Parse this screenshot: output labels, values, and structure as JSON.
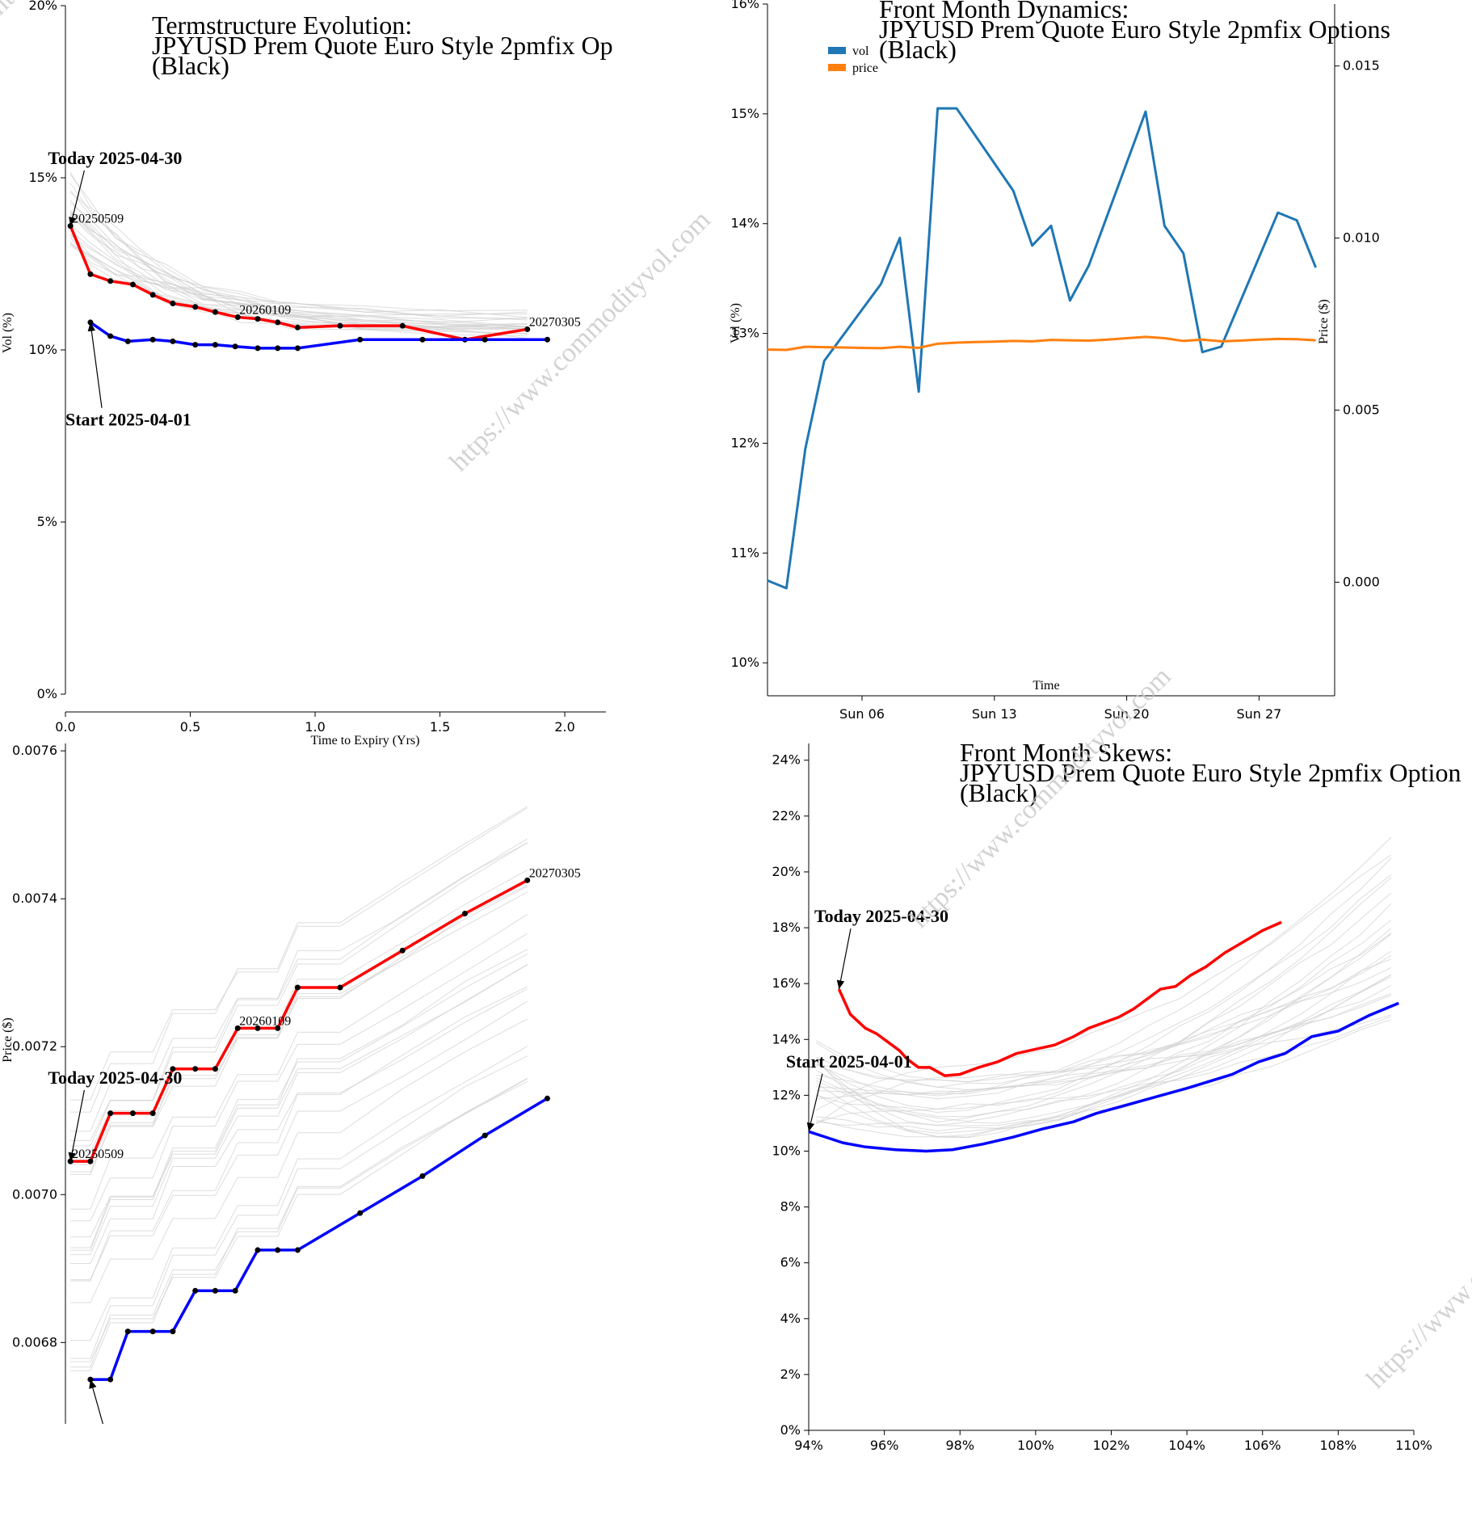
{
  "watermark": "https://www.commodityvol.com",
  "chart_data": [
    {
      "id": "termstructure",
      "type": "line",
      "title": [
        "Termstructure Evolution:",
        "JPYUSD Prem Quote Euro Style 2pmfix Op",
        "(Black)"
      ],
      "xlabel": "Time to Expiry (Yrs)",
      "ylabel": "Vol (%)",
      "xlim": [
        0,
        2.1
      ],
      "ylim": [
        0,
        20
      ],
      "xticks": [
        "0.0",
        "0.5",
        "1.0",
        "1.5",
        "2.0"
      ],
      "yticks": [
        "0%",
        "5%",
        "10%",
        "15%",
        "20%"
      ],
      "series": [
        {
          "color": "#ff0000",
          "x": [
            0.02,
            0.1,
            0.18,
            0.27,
            0.35,
            0.43,
            0.52,
            0.6,
            0.69,
            0.77,
            0.85,
            0.93,
            1.1,
            1.35,
            1.6,
            1.85
          ],
          "y": [
            13.6,
            12.2,
            12.0,
            11.9,
            11.6,
            11.35,
            11.25,
            11.1,
            10.95,
            10.9,
            10.8,
            10.65,
            10.7,
            10.7,
            10.3,
            10.6
          ]
        },
        {
          "color": "#0000ff",
          "x": [
            0.1,
            0.18,
            0.25,
            0.35,
            0.43,
            0.52,
            0.6,
            0.68,
            0.77,
            0.85,
            0.93,
            1.18,
            1.43,
            1.68,
            1.93
          ],
          "y": [
            10.8,
            10.4,
            10.25,
            10.3,
            10.25,
            10.15,
            10.15,
            10.1,
            10.05,
            10.05,
            10.05,
            10.3,
            10.3,
            10.3,
            10.3
          ]
        }
      ],
      "labels": [
        {
          "text": "20250509",
          "x": 0.02,
          "y": 13.6
        },
        {
          "text": "20260109",
          "x": 0.69,
          "y": 10.95
        },
        {
          "text": "20270305",
          "x": 1.85,
          "y": 10.6
        }
      ],
      "annotations": [
        {
          "text": "Today 2025-04-30",
          "x": -0.07,
          "y": 15.4,
          "tx": 0.02,
          "ty": 13.6
        },
        {
          "text": "Start 2025-04-01",
          "x": 0.0,
          "y": 7.8,
          "tx": 0.1,
          "ty": 10.8
        }
      ]
    },
    {
      "id": "dynamics",
      "type": "line",
      "title": [
        "Front Month Dynamics:",
        "JPYUSD Prem Quote Euro Style 2pmfix Options",
        "(Black)"
      ],
      "xlabel": "Time",
      "ylabel": "Vol (%)",
      "y2label": "Price ($)",
      "xlim": [
        0,
        30
      ],
      "ylim": [
        9.7,
        16
      ],
      "y2lim": [
        -0.0033,
        0.0168
      ],
      "xticks": [
        {
          "label": "Sun 06",
          "x": 5
        },
        {
          "label": "Sun 13",
          "x": 12
        },
        {
          "label": "Sun 20",
          "x": 19
        },
        {
          "label": "Sun 27",
          "x": 26
        }
      ],
      "yticks": [
        "10%",
        "11%",
        "12%",
        "13%",
        "14%",
        "15%",
        "16%"
      ],
      "y2ticks": [
        "0.000",
        "0.005",
        "0.010",
        "0.015"
      ],
      "legend": {
        "position": "top-left",
        "entries": [
          {
            "name": "vol",
            "color": "#1f77b4"
          },
          {
            "name": "price",
            "color": "#ff7f0e"
          }
        ]
      },
      "series": [
        {
          "name": "vol",
          "color": "#1f77b4",
          "x": [
            0,
            1,
            2,
            3,
            6,
            7,
            8,
            9,
            10,
            13,
            14,
            15,
            16,
            17,
            20,
            21,
            22,
            23,
            24,
            27,
            28,
            29
          ],
          "y": [
            10.75,
            10.68,
            11.95,
            12.75,
            13.45,
            13.87,
            12.47,
            15.05,
            15.05,
            14.3,
            13.8,
            13.98,
            13.3,
            13.62,
            15.02,
            13.98,
            13.73,
            12.83,
            12.88,
            14.1,
            14.03,
            13.6
          ]
        },
        {
          "name": "price",
          "color": "#ff7f0e",
          "x": [
            0,
            1,
            2,
            3,
            4,
            5,
            6,
            7,
            8,
            9,
            10,
            11,
            12,
            13,
            14,
            15,
            16,
            17,
            18,
            19,
            20,
            21,
            22,
            23,
            24,
            25,
            26,
            27,
            28,
            29
          ],
          "y": [
            0.00676,
            0.00675,
            0.00684,
            0.00683,
            0.00682,
            0.00681,
            0.0068,
            0.00684,
            0.00681,
            0.00693,
            0.00696,
            0.00698,
            0.00699,
            0.00701,
            0.007,
            0.00704,
            0.00703,
            0.00702,
            0.00705,
            0.00709,
            0.00713,
            0.00709,
            0.00701,
            0.00705,
            0.007,
            0.00702,
            0.00705,
            0.00707,
            0.00706,
            0.00703
          ]
        }
      ]
    },
    {
      "id": "forwardcurve",
      "type": "line",
      "ylabel": "Price ($)",
      "xlim": [
        0,
        2.1
      ],
      "ylim": [
        0.00669,
        0.00761
      ],
      "yticks": [
        "0.0068",
        "0.0070",
        "0.0072",
        "0.0074",
        "0.0076"
      ],
      "series": [
        {
          "color": "#ff0000",
          "x": [
            0.02,
            0.1,
            0.18,
            0.27,
            0.35,
            0.43,
            0.52,
            0.6,
            0.69,
            0.77,
            0.85,
            0.93,
            1.1,
            1.35,
            1.6,
            1.85
          ],
          "y": [
            0.007045,
            0.007045,
            0.00711,
            0.00711,
            0.00711,
            0.00717,
            0.00717,
            0.00717,
            0.007225,
            0.007225,
            0.007225,
            0.00728,
            0.00728,
            0.00733,
            0.00738,
            0.007425
          ]
        },
        {
          "color": "#0000ff",
          "x": [
            0.1,
            0.18,
            0.25,
            0.35,
            0.43,
            0.52,
            0.6,
            0.68,
            0.77,
            0.85,
            0.93,
            1.18,
            1.43,
            1.68,
            1.93
          ],
          "y": [
            0.00675,
            0.00675,
            0.006815,
            0.006815,
            0.006815,
            0.00687,
            0.00687,
            0.00687,
            0.006925,
            0.006925,
            0.006925,
            0.006975,
            0.007025,
            0.00708,
            0.00713
          ]
        }
      ],
      "labels": [
        {
          "text": "20250509",
          "x": 0.02,
          "y": 0.007045
        },
        {
          "text": "20260109",
          "x": 0.69,
          "y": 0.007225
        },
        {
          "text": "20270305",
          "x": 1.85,
          "y": 0.007425
        }
      ],
      "annotations": [
        {
          "text": "Today 2025-04-30",
          "x": -0.07,
          "y": 0.00715,
          "tx": 0.02,
          "ty": 0.007045
        },
        {
          "text": "",
          "x": 0.15,
          "y": 0.00669,
          "tx": 0.1,
          "ty": 0.00675
        }
      ]
    },
    {
      "id": "skews",
      "type": "line",
      "title": [
        "Front Month Skews:",
        "JPYUSD Prem Quote Euro Style 2pmfix Option",
        "(Black)"
      ],
      "xlim": [
        94,
        110
      ],
      "ylim": [
        0,
        24.6
      ],
      "xticks": [
        "94%",
        "96%",
        "98%",
        "100%",
        "102%",
        "104%",
        "106%",
        "108%",
        "110%"
      ],
      "yticks": [
        "0%",
        "2%",
        "4%",
        "6%",
        "8%",
        "10%",
        "12%",
        "14%",
        "16%",
        "18%",
        "20%",
        "22%",
        "24%"
      ],
      "series": [
        {
          "color": "#ff0000",
          "x": [
            94.8,
            95.1,
            95.5,
            95.8,
            96.1,
            96.4,
            96.6,
            96.9,
            97.2,
            97.6,
            98.0,
            98.5,
            99.0,
            99.5,
            100.0,
            100.5,
            101.0,
            101.4,
            101.8,
            102.2,
            102.6,
            103.0,
            103.3,
            103.7,
            104.1,
            104.5,
            105.0,
            105.5,
            106.0,
            106.5
          ],
          "y": [
            15.8,
            14.9,
            14.4,
            14.2,
            13.9,
            13.6,
            13.3,
            13.0,
            13.0,
            12.7,
            12.75,
            13.0,
            13.2,
            13.5,
            13.65,
            13.8,
            14.1,
            14.4,
            14.6,
            14.8,
            15.1,
            15.5,
            15.8,
            15.9,
            16.3,
            16.6,
            17.1,
            17.5,
            17.9,
            18.2
          ]
        },
        {
          "color": "#0000ff",
          "x": [
            94.0,
            94.9,
            95.5,
            96.3,
            97.1,
            97.8,
            98.6,
            99.4,
            100.2,
            101.0,
            101.6,
            102.4,
            103.2,
            104.0,
            104.6,
            105.2,
            105.9,
            106.6,
            107.3,
            108.0,
            108.8,
            109.6
          ],
          "y": [
            10.7,
            10.3,
            10.15,
            10.05,
            10.0,
            10.05,
            10.25,
            10.5,
            10.8,
            11.05,
            11.35,
            11.65,
            11.95,
            12.25,
            12.5,
            12.75,
            13.2,
            13.5,
            14.1,
            14.3,
            14.85,
            15.3
          ]
        }
      ],
      "annotations": [
        {
          "text": "Today 2025-04-30",
          "x": 94.15,
          "y": 18.2,
          "tx": 94.8,
          "ty": 15.8
        },
        {
          "text": "Start 2025-04-01",
          "x": 93.4,
          "y": 13.0,
          "tx": 94.0,
          "ty": 10.7
        }
      ]
    }
  ]
}
